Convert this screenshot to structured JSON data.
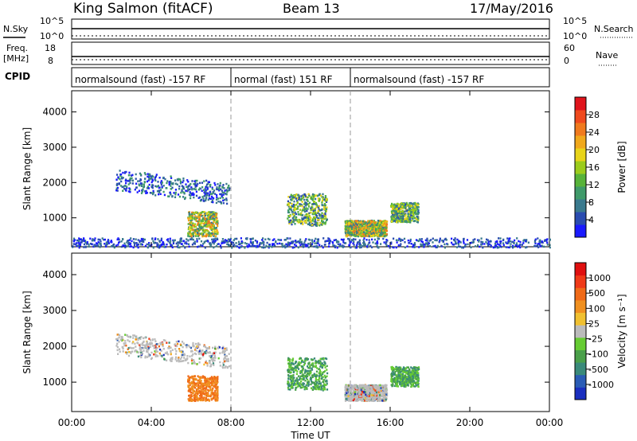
{
  "header": {
    "station": "King Salmon (fitACF)",
    "beam": "Beam 13",
    "date": "17/May/2016"
  },
  "status_panels": {
    "nsky_label": "N.Sky",
    "nsearch_label": "N.Search",
    "left_ticks_top": [
      "10^5",
      "10^0"
    ],
    "right_ticks_top": [
      "10^5",
      "10^0"
    ],
    "freq_label": "Freq.",
    "freq_unit": "[MHz]",
    "freq_ticks": [
      "18",
      "8"
    ],
    "nave_label": "Nave",
    "nave_ticks": [
      "60",
      "0"
    ],
    "cpid_label": "CPID",
    "cpid_segments": [
      {
        "label": "normalsound (fast) -157 RF",
        "start_hour": 0,
        "end_hour": 8
      },
      {
        "label": "normal (fast) 151 RF",
        "start_hour": 8,
        "end_hour": 14
      },
      {
        "label": "normalsound (fast) -157 RF",
        "start_hour": 14,
        "end_hour": 24
      }
    ]
  },
  "chart_data": [
    {
      "type": "heatmap",
      "name": "power",
      "ylabel": "Slant Range [km]",
      "ylim": [
        180,
        4600
      ],
      "yticks": [
        1000,
        2000,
        3000,
        4000
      ],
      "xlim": [
        0,
        24
      ],
      "colorbar": {
        "label": "Power [dB]",
        "range": [
          0,
          32
        ],
        "ticks": [
          "4",
          "8",
          "12",
          "16",
          "20",
          "24",
          "28"
        ],
        "colors": [
          "#1a1aff",
          "#2a4cb0",
          "#3a7a8e",
          "#3f9a6a",
          "#57b33a",
          "#9ccc1c",
          "#e8d41a",
          "#f0a81c",
          "#f07a1e",
          "#f04a1e",
          "#e0141c"
        ]
      },
      "scatter_regions": [
        {
          "t": [
            2.2,
            7.9
          ],
          "r": [
            1800,
            2400
          ],
          "value": "low-mid"
        },
        {
          "t": [
            5.8,
            7.3
          ],
          "r": [
            500,
            1200
          ],
          "value": "mid-high"
        },
        {
          "t": [
            10.8,
            12.8
          ],
          "r": [
            800,
            1700
          ],
          "value": "mid"
        },
        {
          "t": [
            13.7,
            15.8
          ],
          "r": [
            500,
            950
          ],
          "value": "mid-high"
        },
        {
          "t": [
            16.0,
            17.4
          ],
          "r": [
            900,
            1450
          ],
          "value": "mid"
        },
        {
          "t": [
            0,
            24
          ],
          "r": [
            180,
            450
          ],
          "value": "low"
        }
      ]
    },
    {
      "type": "heatmap",
      "name": "velocity",
      "ylabel": "Slant Range [km]",
      "ylim": [
        180,
        4600
      ],
      "yticks": [
        1000,
        2000,
        3000,
        4000
      ],
      "xlim": [
        0,
        24
      ],
      "xticks": [
        "00:00",
        "04:00",
        "08:00",
        "12:00",
        "16:00",
        "20:00",
        "00:00"
      ],
      "xlabel": "Time UT",
      "colorbar": {
        "label": "Velocity [m s⁻¹]",
        "ticks": [
          "1000",
          "500",
          "100",
          "25",
          "-25",
          "-100",
          "-500",
          "-1000"
        ],
        "colors": [
          "#1a2fbf",
          "#2a5cb5",
          "#3a8a7a",
          "#4aa04a",
          "#66cc33",
          "#bbbbbb",
          "#f0c030",
          "#f09020",
          "#f06a18",
          "#f03a18",
          "#e01010"
        ]
      },
      "scatter_regions": [
        {
          "t": [
            2.2,
            7.9
          ],
          "r": [
            1800,
            2400
          ],
          "value": "near-zero"
        },
        {
          "t": [
            5.8,
            7.3
          ],
          "r": [
            500,
            1200
          ],
          "value": "away"
        },
        {
          "t": [
            10.8,
            12.8
          ],
          "r": [
            800,
            1700
          ],
          "value": "toward"
        },
        {
          "t": [
            13.7,
            15.8
          ],
          "r": [
            500,
            950
          ],
          "value": "near-zero"
        },
        {
          "t": [
            16.0,
            17.4
          ],
          "r": [
            900,
            1450
          ],
          "value": "toward"
        }
      ]
    }
  ]
}
